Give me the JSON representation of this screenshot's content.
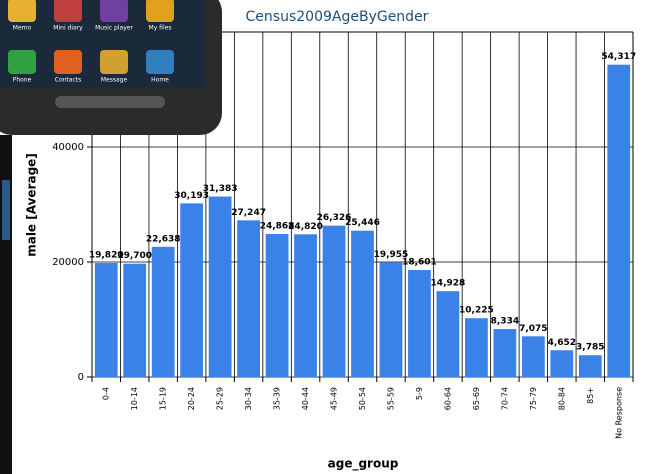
{
  "chart_data": {
    "type": "bar",
    "title": "Census2009AgeByGender",
    "x_label": "age_group",
    "y_label": "male [Average]",
    "categories": [
      "0-4",
      "10-14",
      "15-19",
      "20-24",
      "25-29",
      "30-34",
      "35-39",
      "40-44",
      "45-49",
      "50-54",
      "55-59",
      "5-9",
      "60-64",
      "65-69",
      "70-74",
      "75-79",
      "80-84",
      "85+",
      "No Response"
    ],
    "values": [
      19820,
      19700,
      22638,
      30193,
      31383,
      27247,
      24868,
      24820,
      26326,
      25446,
      19955,
      18601,
      14928,
      10225,
      8334,
      7075,
      4652,
      3785,
      54317
    ],
    "value_labels": [
      "19,820",
      "19,700",
      "22,638",
      "30,193",
      "31,383",
      "27,247",
      "24,868",
      "24,820",
      "26,326",
      "25,446",
      "19,955",
      "18,601",
      "14,928",
      "10,225",
      "8,334",
      "7,075",
      "4,652",
      "3,785",
      "54,317"
    ],
    "color": "#3b82e8",
    "ylim": [
      0,
      60000
    ],
    "yticks": [
      0,
      20000,
      40000
    ],
    "grid": true
  },
  "phone_overlay": {
    "apps": [
      "Memo",
      "Mini diary",
      "Music player",
      "My files",
      "Phone",
      "Contacts",
      "Message",
      "Home"
    ]
  }
}
